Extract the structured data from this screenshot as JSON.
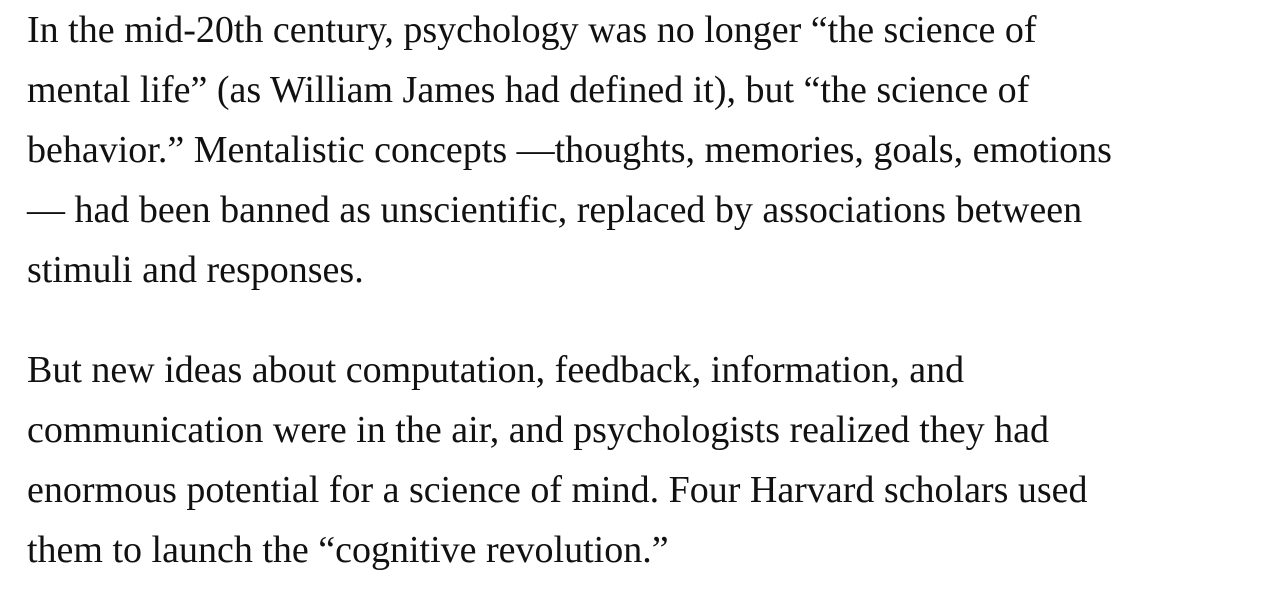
{
  "article": {
    "paragraphs": [
      {
        "lines": [
          "In the mid-20th century, psychology was no longer “the science of",
          "mental life” (as William James had defined it), but “the science of",
          "behavior.” Mentalistic concepts —thoughts, memories, goals, emotions",
          "— had been banned as unscientific, replaced by associations between",
          "stimuli and responses."
        ]
      },
      {
        "lines": [
          "But new ideas about computation, feedback, information, and",
          "communication were in the air, and psychologists realized they had",
          "enormous potential for a science of mind. Four Harvard scholars used",
          "them to launch the “cognitive revolution.”"
        ]
      }
    ]
  }
}
